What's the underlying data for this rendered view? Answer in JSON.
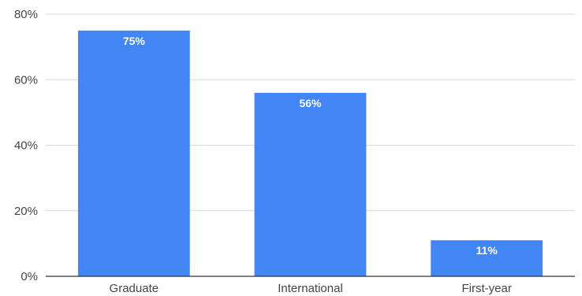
{
  "chart_data": {
    "type": "bar",
    "categories": [
      "Graduate",
      "International",
      "First-year"
    ],
    "values": [
      75,
      56,
      11
    ],
    "data_labels": [
      "75%",
      "56%",
      "11%"
    ],
    "title": "",
    "xlabel": "",
    "ylabel": "",
    "ylim": [
      0,
      80
    ],
    "y_ticks": [
      0,
      20,
      40,
      60,
      80
    ],
    "y_tick_labels": [
      "0%",
      "20%",
      "40%",
      "60%",
      "80%"
    ],
    "grid": true,
    "legend": "none",
    "colors": {
      "bar": "#4285f4",
      "label": "#ffffff",
      "grid": "#d9d9d9",
      "axis": "#333333",
      "text": "#444444"
    }
  }
}
